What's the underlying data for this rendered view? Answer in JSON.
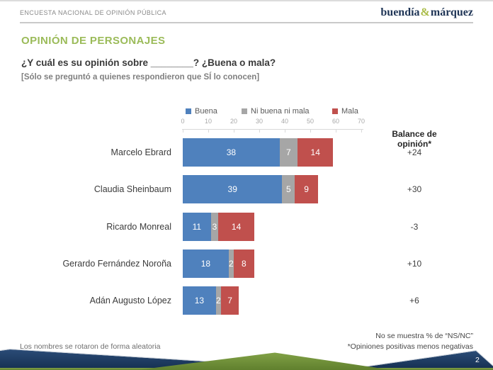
{
  "header": {
    "title": "ENCUESTA NACIONAL DE OPINIÓN PÚBLICA",
    "brand": {
      "name_1": "buendía",
      "amp": "&",
      "name_2": "márquez"
    }
  },
  "main": {
    "section_title": "OPINIÓN DE PERSONAJES",
    "question": "¿Y cuál es su opinión sobre ________? ¿Buena o mala?",
    "note": "[Sólo se preguntó a quienes respondieron que SÍ lo conocen]",
    "balance_header": "Balance de opinión*"
  },
  "chart_data": {
    "type": "bar",
    "orientation": "horizontal",
    "stacked": true,
    "title": "Opinión de personajes",
    "categories": [
      "Marcelo Ebrard",
      "Claudia Sheinbaum",
      "Ricardo Monreal",
      "Gerardo Fernández Noroña",
      "Adán Augusto López"
    ],
    "series": [
      {
        "name": "Buena",
        "color": "#4F81BD",
        "values": [
          38,
          39,
          11,
          18,
          13
        ]
      },
      {
        "name": "Ni buena ni mala",
        "color": "#A6A6A6",
        "values": [
          7,
          5,
          3,
          2,
          2
        ]
      },
      {
        "name": "Mala",
        "color": "#C0504D",
        "values": [
          14,
          9,
          14,
          8,
          7
        ]
      }
    ],
    "balance": [
      "+24",
      "+30",
      "-3",
      "+10",
      "+6"
    ],
    "x_ticks": [
      0,
      10,
      20,
      30,
      40,
      50,
      60,
      70
    ],
    "xlim": [
      0,
      70
    ],
    "grid": false,
    "legend_position": "top",
    "value_labels": "inside-white"
  },
  "footer": {
    "left_note": "Los nombres se rotaron de forma aleatoria",
    "right_note_1": "No se muestra % de “NS/NC”",
    "right_note_2": "*Opiniones positivas menos negativas",
    "page_number": "2"
  },
  "colors": {
    "accent_green": "#9BBB59",
    "brand_navy": "#1F3556",
    "deco_navy_light": "#2B4C77",
    "deco_navy_dark": "#142E50",
    "deco_green_light": "#81A146",
    "deco_green_dark": "#60802E",
    "buena": "#4F81BD",
    "neutral": "#A6A6A6",
    "mala": "#C0504D"
  }
}
